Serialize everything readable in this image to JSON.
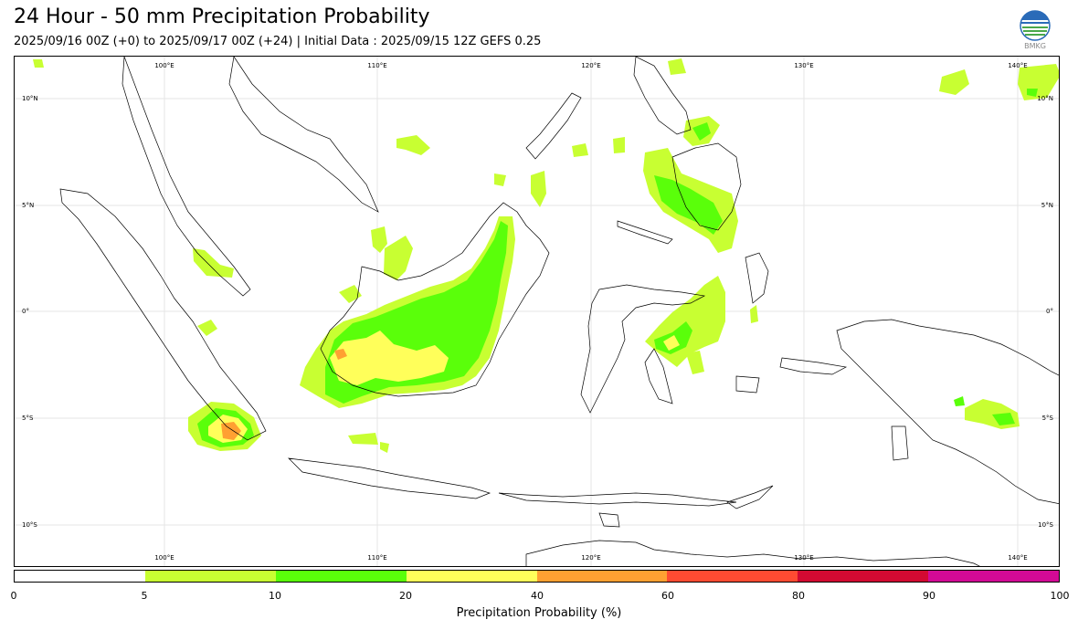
{
  "header": {
    "title": "24 Hour - 50 mm Precipitation Probability",
    "subtitle": "2025/09/16 00Z (+0) to 2025/09/17 00Z (+24) | Initial Data : 2025/09/15 12Z GEFS 0.25",
    "logo_text": "BMKG"
  },
  "map": {
    "lon_labels": [
      "100°E",
      "110°E",
      "120°E",
      "130°E",
      "140°E"
    ],
    "lat_labels": [
      "10°N",
      "5°N",
      "0°",
      "5°S",
      "10°S"
    ]
  },
  "colorbar": {
    "label": "Precipitation Probability (%)",
    "ticks": [
      "0",
      "5",
      "10",
      "20",
      "40",
      "60",
      "80",
      "90",
      "100"
    ],
    "colors": [
      "#ffffff",
      "#c8ff32",
      "#5aff0a",
      "#ffff5a",
      "#ffa032",
      "#ff4b32",
      "#d20a32",
      "#d20a96"
    ]
  }
}
